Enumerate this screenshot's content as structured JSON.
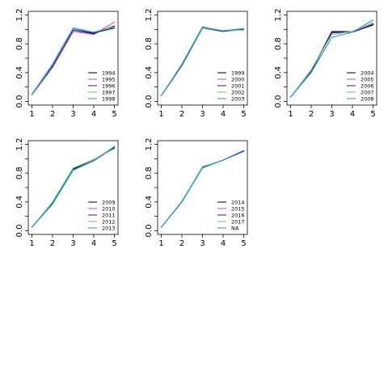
{
  "colors": [
    "#000000",
    "#df536b",
    "#1f0bd6",
    "#61d04f",
    "#2297e6"
  ],
  "chart_data": [
    {
      "type": "line",
      "x": [
        1,
        2,
        3,
        4,
        5
      ],
      "xticks": [
        "1",
        "2",
        "3",
        "4",
        "5"
      ],
      "ylim": [
        0,
        1.2
      ],
      "yticks": [
        "0.0",
        "0.4",
        "0.8",
        "1.2"
      ],
      "legend_position": "bottom-right",
      "series": [
        {
          "name": "1994",
          "color": "#000000",
          "values": [
            0.09,
            0.5,
            1.01,
            0.95,
            1.02
          ]
        },
        {
          "name": "1995",
          "color": "#df536b",
          "values": [
            0.09,
            0.47,
            0.97,
            0.93,
            1.1
          ]
        },
        {
          "name": "1996",
          "color": "#1f0bd6",
          "values": [
            0.09,
            0.49,
            0.99,
            0.94,
            1.05
          ]
        },
        {
          "name": "1997",
          "color": "#61d04f",
          "values": [
            0.09,
            0.51,
            1.01,
            0.96,
            1.03
          ]
        },
        {
          "name": "1998",
          "color": "#2297e6",
          "values": [
            0.1,
            0.52,
            1.02,
            0.96,
            1.04
          ]
        }
      ]
    },
    {
      "type": "line",
      "x": [
        1,
        2,
        3,
        4,
        5
      ],
      "xticks": [
        "1",
        "2",
        "3",
        "4",
        "5"
      ],
      "ylim": [
        0,
        1.2
      ],
      "yticks": [
        "0.0",
        "0.4",
        "0.8",
        "1.2"
      ],
      "legend_position": "bottom-right",
      "series": [
        {
          "name": "1999",
          "color": "#000000",
          "values": [
            0.08,
            0.5,
            1.02,
            0.98,
            1.01
          ]
        },
        {
          "name": "2000",
          "color": "#df536b",
          "values": [
            0.08,
            0.51,
            1.03,
            0.98,
            1.0
          ]
        },
        {
          "name": "2001",
          "color": "#1f0bd6",
          "values": [
            0.08,
            0.5,
            1.02,
            0.97,
            1.0
          ]
        },
        {
          "name": "2002",
          "color": "#61d04f",
          "values": [
            0.08,
            0.52,
            1.04,
            0.98,
            0.99
          ]
        },
        {
          "name": "2003",
          "color": "#2297e6",
          "values": [
            0.08,
            0.51,
            1.02,
            0.98,
            1.01
          ]
        }
      ]
    },
    {
      "type": "line",
      "x": [
        1,
        2,
        3,
        4,
        5
      ],
      "xticks": [
        "1",
        "2",
        "3",
        "4",
        "5"
      ],
      "ylim": [
        0,
        1.2
      ],
      "yticks": [
        "0.0",
        "0.4",
        "0.8",
        "1.2"
      ],
      "legend_position": "bottom-right",
      "series": [
        {
          "name": "2004",
          "color": "#000000",
          "values": [
            0.06,
            0.42,
            0.97,
            0.97,
            1.07
          ]
        },
        {
          "name": "2005",
          "color": "#df536b",
          "values": [
            0.06,
            0.43,
            0.95,
            0.97,
            1.08
          ]
        },
        {
          "name": "2006",
          "color": "#1f0bd6",
          "values": [
            0.06,
            0.41,
            0.96,
            0.96,
            1.06
          ]
        },
        {
          "name": "2007",
          "color": "#61d04f",
          "values": [
            0.06,
            0.44,
            0.93,
            0.97,
            1.09
          ]
        },
        {
          "name": "2008",
          "color": "#2297e6",
          "values": [
            0.06,
            0.4,
            0.89,
            0.96,
            1.13
          ]
        }
      ]
    },
    {
      "type": "line",
      "x": [
        1,
        2,
        3,
        4,
        5
      ],
      "xticks": [
        "1",
        "2",
        "3",
        "4",
        "5"
      ],
      "ylim": [
        0,
        1.2
      ],
      "yticks": [
        "0.0",
        "0.4",
        "0.8",
        "1.2"
      ],
      "legend_position": "bottom-right",
      "series": [
        {
          "name": "2009",
          "color": "#000000",
          "values": [
            0.05,
            0.38,
            0.86,
            0.98,
            1.15
          ]
        },
        {
          "name": "2010",
          "color": "#df536b",
          "values": [
            0.05,
            0.37,
            0.85,
            0.98,
            1.16
          ]
        },
        {
          "name": "2011",
          "color": "#1f0bd6",
          "values": [
            0.05,
            0.38,
            0.85,
            0.97,
            1.16
          ]
        },
        {
          "name": "2012",
          "color": "#61d04f",
          "values": [
            0.05,
            0.4,
            0.87,
            0.99,
            1.14
          ]
        },
        {
          "name": "2013",
          "color": "#2297e6",
          "values": [
            0.05,
            0.37,
            0.84,
            0.97,
            1.17
          ]
        }
      ]
    },
    {
      "type": "line",
      "x": [
        1,
        2,
        3,
        4,
        5
      ],
      "xticks": [
        "1",
        "2",
        "3",
        "4",
        "5"
      ],
      "ylim": [
        0,
        1.2
      ],
      "yticks": [
        "0.0",
        "0.4",
        "0.8",
        "1.2"
      ],
      "legend_position": "bottom-right",
      "series": [
        {
          "name": "2014",
          "color": "#000000",
          "values": [
            0.05,
            0.4,
            0.88,
            0.98,
            1.11
          ]
        },
        {
          "name": "2015",
          "color": "#df536b",
          "values": [
            0.05,
            0.4,
            0.88,
            0.98,
            1.11
          ]
        },
        {
          "name": "2016",
          "color": "#1f0bd6",
          "values": [
            0.05,
            0.4,
            0.88,
            0.98,
            1.11
          ]
        },
        {
          "name": "2017",
          "color": "#61d04f",
          "values": [
            0.05,
            0.41,
            0.89,
            0.98,
            1.1
          ]
        },
        {
          "name": "NA",
          "color": "#2297e6",
          "values": [
            0.05,
            0.4,
            0.87,
            0.98,
            1.1
          ]
        }
      ]
    }
  ]
}
